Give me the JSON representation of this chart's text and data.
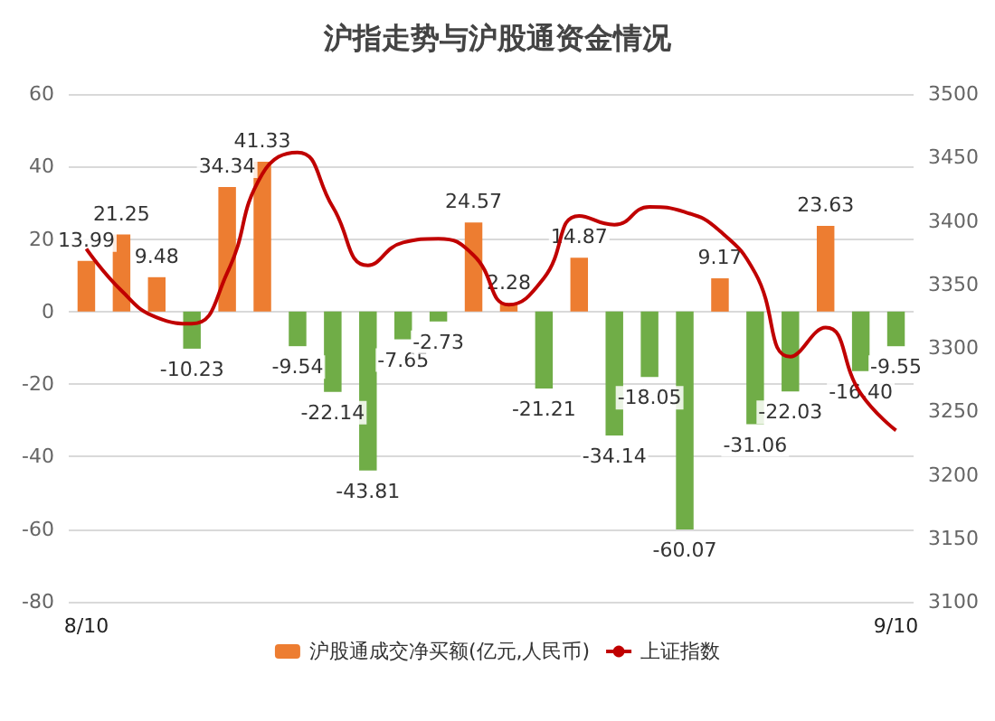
{
  "chart_data": {
    "type": "bar",
    "title": "沪指走势与沪股通资金情况",
    "categories": [
      "8/10",
      null,
      null,
      null,
      null,
      null,
      null,
      null,
      null,
      null,
      null,
      null,
      null,
      null,
      null,
      null,
      null,
      null,
      null,
      null,
      null,
      null,
      null,
      "9/10"
    ],
    "series": [
      {
        "name": "沪股通成交净买额(亿元,人民币)",
        "color": "#ed7d31",
        "colors": [
          "#ed7d31",
          "#ed7d31",
          "#ed7d31",
          "#70ad47",
          "#ed7d31",
          "#ed7d31",
          "#70ad47",
          "#70ad47",
          "#70ad47",
          "#70ad47",
          "#70ad47",
          "#ed7d31",
          "#ed7d31",
          "#70ad47",
          "#ed7d31",
          "#70ad47",
          "#70ad47",
          "#70ad47",
          "#ed7d31",
          "#70ad47",
          "#70ad47",
          "#ed7d31",
          "#70ad47",
          "#70ad47"
        ],
        "values": [
          13.99,
          21.25,
          9.48,
          -10.23,
          34.34,
          41.33,
          -9.54,
          -22.14,
          -43.81,
          -7.65,
          -2.73,
          24.57,
          2.28,
          -21.21,
          14.87,
          -34.14,
          -18.05,
          -60.07,
          9.17,
          -31.06,
          -22.03,
          23.63,
          -16.4,
          -9.55
        ],
        "value_labels": [
          "13.99",
          "21.25",
          "9.48",
          "-10.23",
          "34.34",
          "41.33",
          "-9.54",
          "-22.14",
          "-43.81",
          "-7.65",
          "-2.73",
          "24.57",
          "2.28",
          "-21.21",
          "14.87",
          "-34.14",
          "-18.05",
          "-60.07",
          "9.17",
          "-31.06",
          "-22.03",
          "23.63",
          "-16.40",
          "-9.55"
        ]
      },
      {
        "name": "上证指数",
        "type": "line",
        "axis": "y2",
        "color": "#c00000",
        "values": [
          3378,
          3345,
          3324,
          3319,
          3359,
          3437,
          3454,
          3411,
          3365,
          3383,
          3386,
          3373,
          3334,
          3355,
          3404,
          3397,
          3411,
          3407,
          3392,
          3359,
          3293,
          3316,
          3264,
          3235
        ]
      }
    ],
    "ylim": [
      -80,
      60
    ],
    "yticks": [
      -80,
      -60,
      -40,
      -20,
      0,
      20,
      40,
      60
    ],
    "y2lim": [
      3100,
      3500
    ],
    "y2ticks": [
      3100,
      3150,
      3200,
      3250,
      3300,
      3350,
      3400,
      3450,
      3500
    ],
    "grid": "y",
    "legend": "bottom",
    "marker": "none",
    "line_style": "solid"
  }
}
